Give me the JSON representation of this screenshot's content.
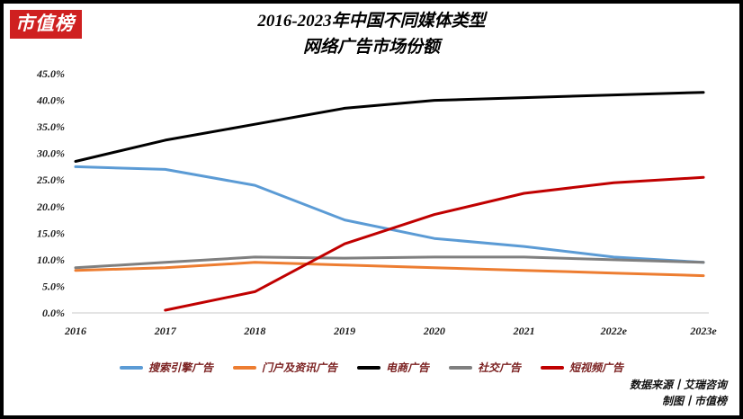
{
  "logo": "市值榜",
  "title_line1": "2016-2023年中国不同媒体类型",
  "title_line2": "网络广告市场份额",
  "footer": {
    "source": "数据来源丨艾瑞咨询",
    "credit": "制图丨市值榜"
  },
  "brand_color": "#cf2020",
  "chart_data": {
    "type": "line",
    "title": "2016-2023年中国不同媒体类型网络广告市场份额",
    "xlabel": "",
    "ylabel": "",
    "categories": [
      "2016",
      "2017",
      "2018",
      "2019",
      "2020",
      "2021",
      "2022e",
      "2023e"
    ],
    "series": [
      {
        "name": "搜索引擎广告",
        "color": "#5B9BD5",
        "values": [
          27.5,
          27.0,
          24.0,
          17.5,
          14.0,
          12.5,
          10.5,
          9.5
        ]
      },
      {
        "name": "门户及资讯广告",
        "color": "#ED7D31",
        "values": [
          8.0,
          8.5,
          9.5,
          9.0,
          8.5,
          8.0,
          7.5,
          7.0
        ]
      },
      {
        "name": "电商广告",
        "color": "#000000",
        "values": [
          28.5,
          32.5,
          35.5,
          38.5,
          40.0,
          40.5,
          41.0,
          41.5
        ]
      },
      {
        "name": "社交广告",
        "color": "#7F7F7F",
        "values": [
          8.5,
          9.5,
          10.5,
          10.3,
          10.5,
          10.5,
          10.0,
          9.5
        ]
      },
      {
        "name": "短视频广告",
        "color": "#C00000",
        "values": [
          null,
          0.5,
          4.0,
          13.0,
          18.5,
          22.5,
          24.5,
          25.5
        ]
      }
    ],
    "ylim": [
      0,
      45
    ],
    "ytick_step": 5,
    "ytick_format": "percent_1dp",
    "grid": false,
    "legend_position": "bottom"
  }
}
